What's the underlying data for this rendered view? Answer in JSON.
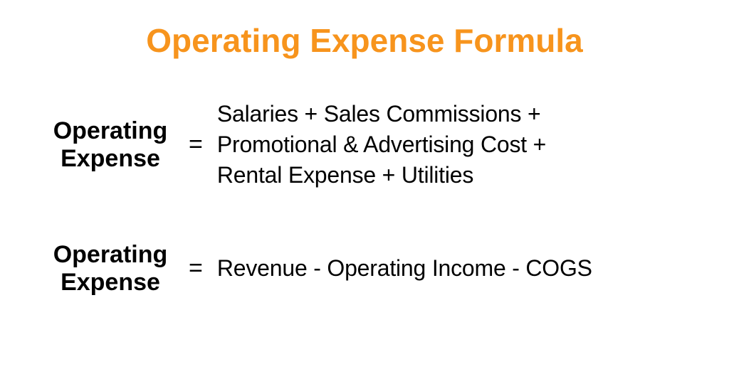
{
  "title": {
    "text": "Operating Expense Formula",
    "color": "#f7941d",
    "fontsize": 46
  },
  "formulas": [
    {
      "lhs_line1": "Operating",
      "lhs_line2": "Expense",
      "equals": "=",
      "rhs_line1": "Salaries + Sales Commissions +",
      "rhs_line2": "Promotional & Advertising Cost +",
      "rhs_line3": "Rental Expense + Utilities",
      "lhs_fontsize": 34,
      "rhs_fontsize": 32,
      "equals_fontsize": 34,
      "text_color": "#000000"
    },
    {
      "lhs_line1": "Operating",
      "lhs_line2": "Expense",
      "equals": "=",
      "rhs_line1": "Revenue - Operating Income - COGS",
      "lhs_fontsize": 34,
      "rhs_fontsize": 32,
      "equals_fontsize": 34,
      "text_color": "#000000"
    }
  ],
  "background_color": "#ffffff"
}
